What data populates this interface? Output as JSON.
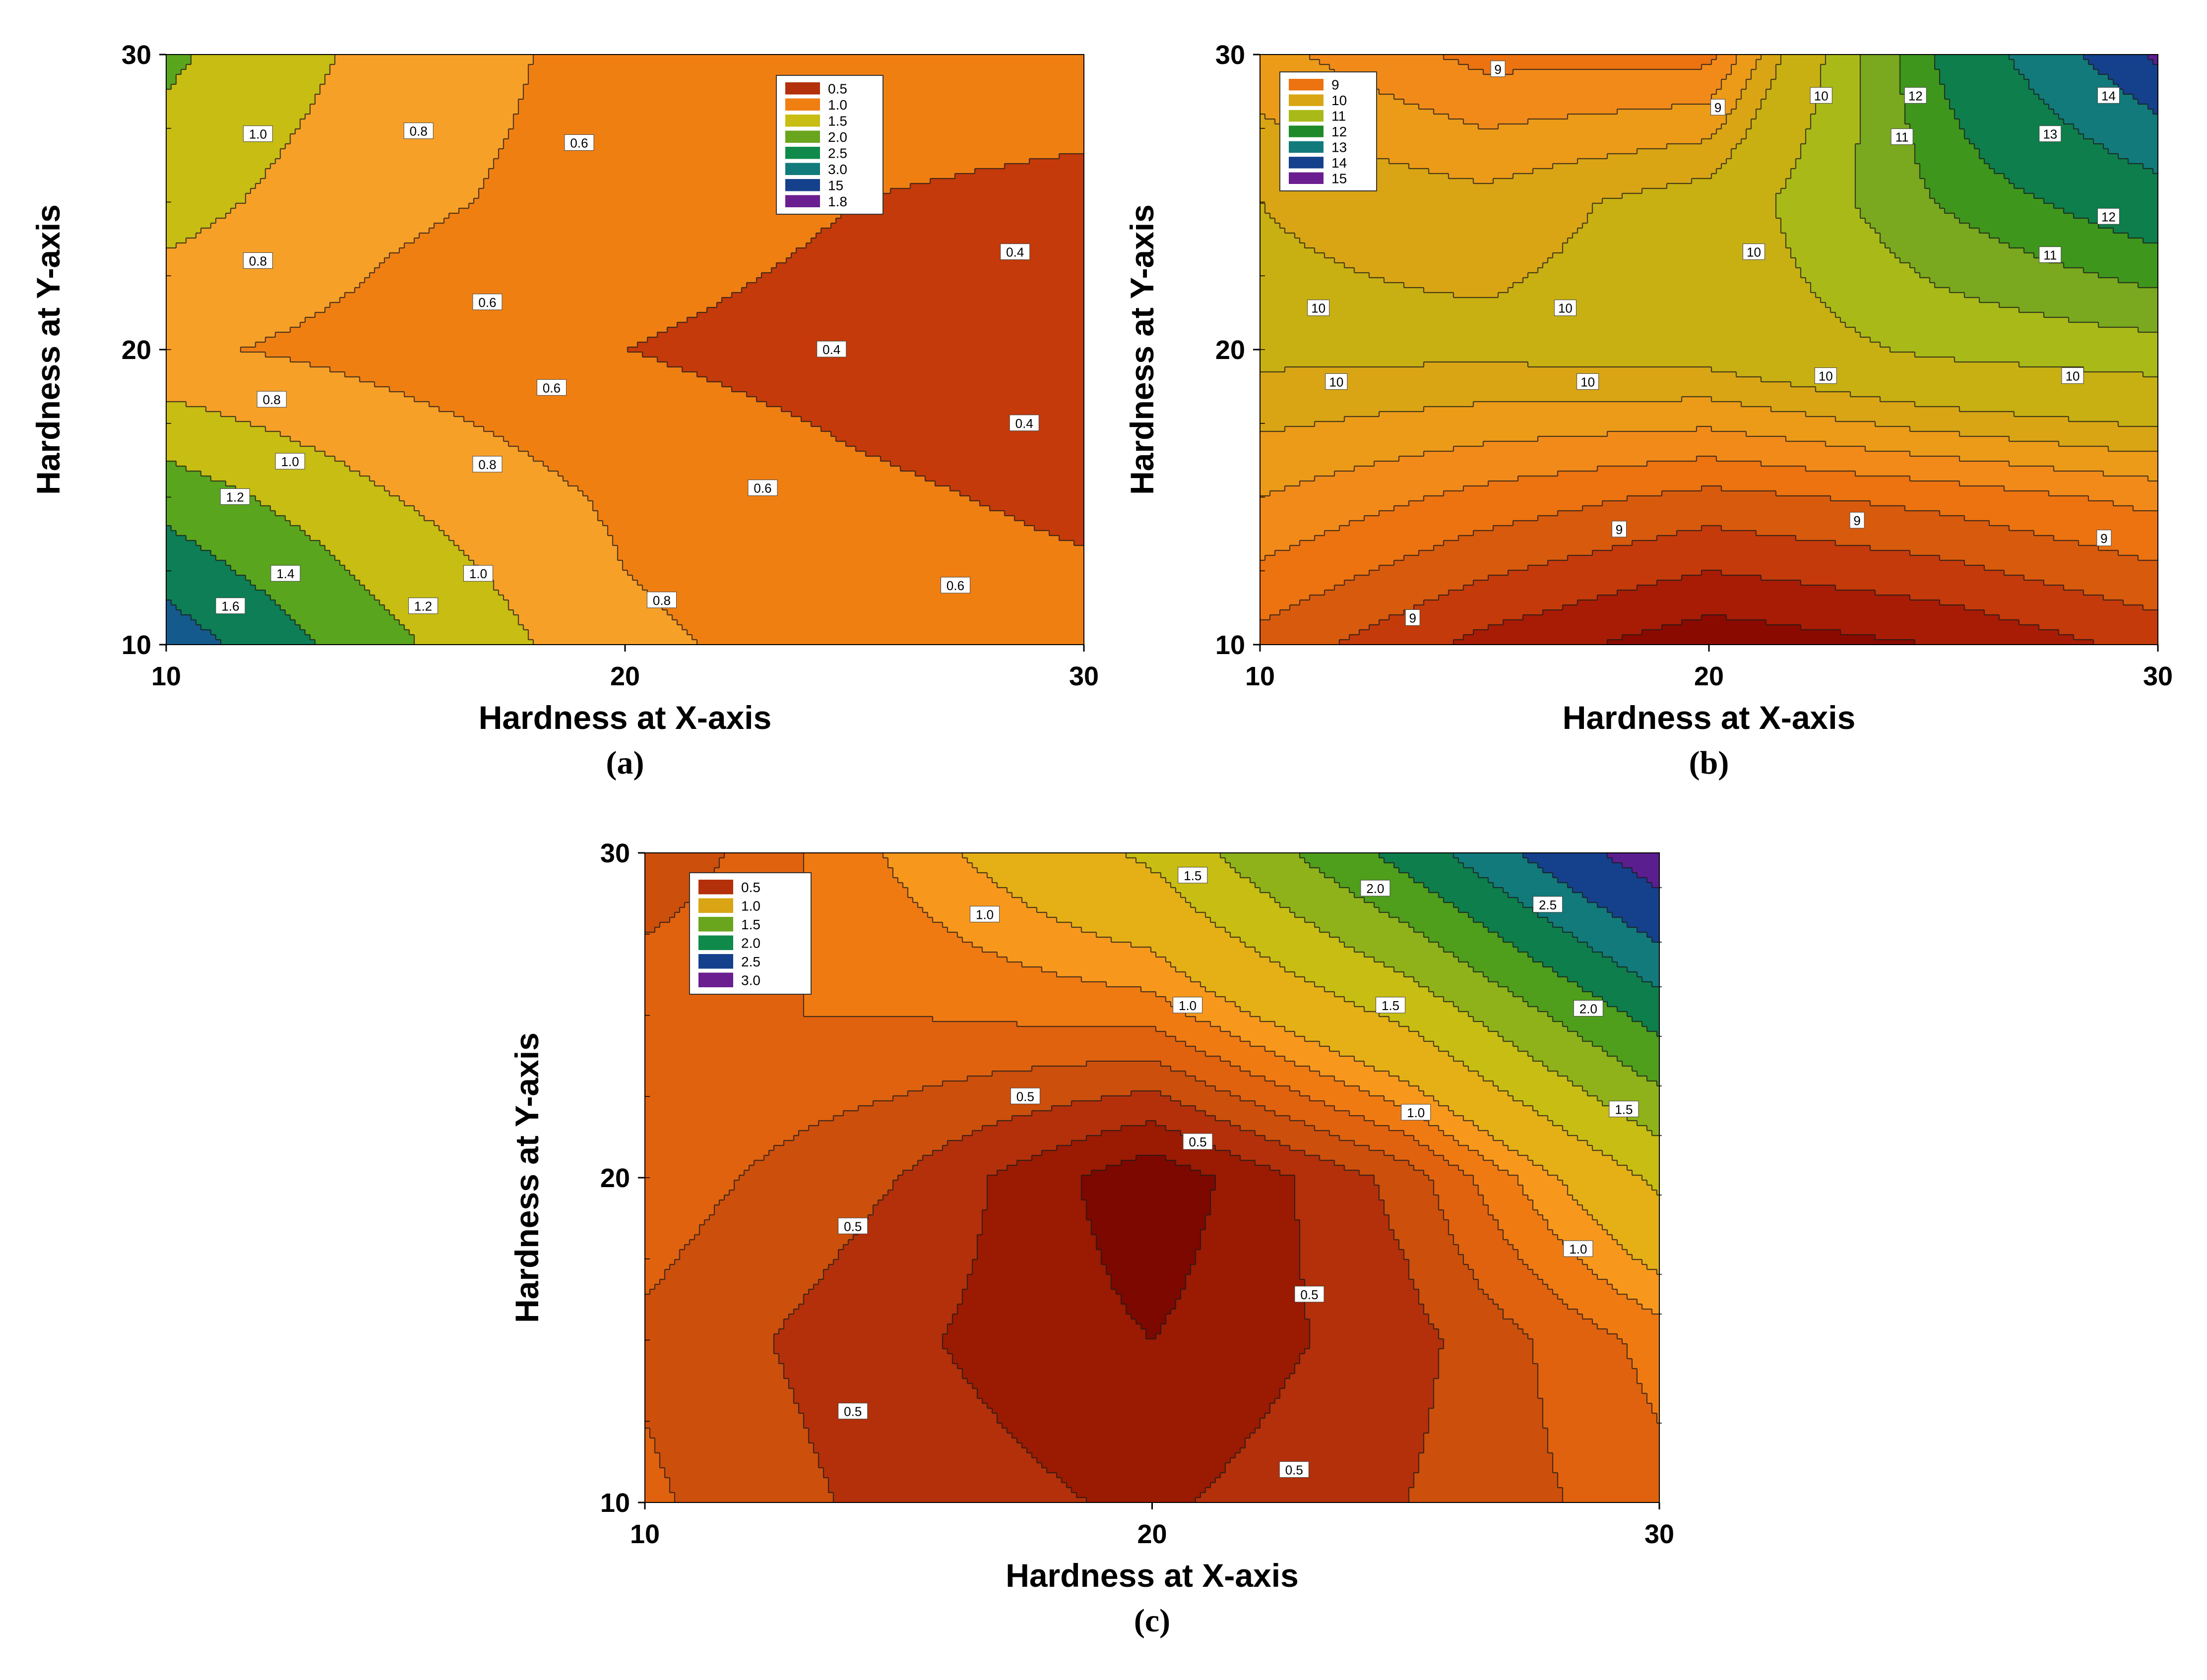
{
  "figure": {
    "panels": [
      {
        "label": "(a)"
      },
      {
        "label": "(b)"
      },
      {
        "label": "(c)"
      }
    ]
  },
  "chart_data": [
    {
      "id": "a",
      "type": "heatmap",
      "subtype": "filled-contour",
      "panel_label": "(a)",
      "xlabel": "Hardness at X-axis",
      "ylabel": "Hardness at Y-axis",
      "xlim": [
        10,
        30
      ],
      "ylim": [
        10,
        30
      ],
      "xticks": [
        10,
        20,
        30
      ],
      "yticks": [
        10,
        20,
        30
      ],
      "x": [
        10,
        15,
        20,
        25,
        30
      ],
      "y": [
        10,
        15,
        20,
        25,
        30
      ],
      "z": [
        [
          1.9,
          1.3,
          0.8,
          0.65,
          0.6
        ],
        [
          1.4,
          1.0,
          0.7,
          0.55,
          0.45
        ],
        [
          0.8,
          0.65,
          0.5,
          0.4,
          0.3
        ],
        [
          1.1,
          0.8,
          0.65,
          0.5,
          0.45
        ],
        [
          1.3,
          0.9,
          0.65,
          0.6,
          0.6
        ]
      ],
      "levels": [
        0.25,
        0.5,
        0.75,
        1.0,
        1.25,
        1.5,
        1.75,
        2.0
      ],
      "colors": [
        "#8b0a00",
        "#c43a0a",
        "#f07f12",
        "#f7a028",
        "#c8bd12",
        "#5aa51e",
        "#0d7e55",
        "#145a8c",
        "#5b1e8f"
      ],
      "legend": {
        "position": "top-right",
        "entries": [
          {
            "label": "0.5",
            "color": "#b3300a"
          },
          {
            "label": "1.0",
            "color": "#f07f12"
          },
          {
            "label": "1.5",
            "color": "#c8bd12"
          },
          {
            "label": "2.0",
            "color": "#6aa51e"
          },
          {
            "label": "2.5",
            "color": "#0f8a4a"
          },
          {
            "label": "3.0",
            "color": "#127a7a"
          },
          {
            "label": "15",
            "color": "#15418c"
          },
          {
            "label": "1.8",
            "color": "#6a1e8f"
          }
        ]
      },
      "annotations": [
        {
          "text": "1.0",
          "x": 12,
          "y": 27.3
        },
        {
          "text": "0.8",
          "x": 15.5,
          "y": 27.4
        },
        {
          "text": "0.6",
          "x": 19,
          "y": 27
        },
        {
          "text": "0.8",
          "x": 12,
          "y": 23
        },
        {
          "text": "0.6",
          "x": 17,
          "y": 21.6
        },
        {
          "text": "0.4",
          "x": 28.5,
          "y": 23.3
        },
        {
          "text": "0.4",
          "x": 24.5,
          "y": 20
        },
        {
          "text": "0.8",
          "x": 12.3,
          "y": 18.3
        },
        {
          "text": "0.6",
          "x": 18.4,
          "y": 18.7
        },
        {
          "text": "0.4",
          "x": 28.7,
          "y": 17.5
        },
        {
          "text": "1.0",
          "x": 12.7,
          "y": 16.2
        },
        {
          "text": "0.8",
          "x": 17,
          "y": 16.1
        },
        {
          "text": "1.2",
          "x": 11.5,
          "y": 15
        },
        {
          "text": "0.6",
          "x": 23,
          "y": 15.3
        },
        {
          "text": "1.4",
          "x": 12.6,
          "y": 12.4
        },
        {
          "text": "1.0",
          "x": 16.8,
          "y": 12.4
        },
        {
          "text": "1.6",
          "x": 11.4,
          "y": 11.3
        },
        {
          "text": "1.2",
          "x": 15.6,
          "y": 11.3
        },
        {
          "text": "0.8",
          "x": 20.8,
          "y": 11.5
        },
        {
          "text": "0.6",
          "x": 27.2,
          "y": 12
        }
      ]
    },
    {
      "id": "b",
      "type": "heatmap",
      "subtype": "filled-contour",
      "panel_label": "(b)",
      "xlabel": "Hardness at X-axis",
      "ylabel": "Hardness at Y-axis",
      "xlim": [
        10,
        30
      ],
      "ylim": [
        10,
        30
      ],
      "xticks": [
        10,
        20,
        30
      ],
      "yticks": [
        10,
        20,
        30
      ],
      "x": [
        10,
        15,
        20,
        25,
        30
      ],
      "y": [
        10,
        15,
        20,
        25,
        30
      ],
      "z": [
        [
          8.6,
          8.0,
          7.6,
          7.8,
          8.2
        ],
        [
          9.3,
          8.9,
          8.6,
          8.8,
          9.1
        ],
        [
          10.0,
          10.0,
          10.1,
          10.6,
          10.8
        ],
        [
          9.9,
          9.7,
          10.1,
          11.5,
          12.5
        ],
        [
          9.4,
          8.9,
          8.9,
          12.0,
          15.0
        ]
      ],
      "levels": [
        7.8,
        8.1,
        8.4,
        8.7,
        9.0,
        9.3,
        9.6,
        9.9,
        10.5,
        11.0,
        11.5,
        12.0,
        13.0,
        14.0,
        14.8
      ],
      "colors": [
        "#8b0a00",
        "#a81c05",
        "#c43a0a",
        "#d85a0d",
        "#ec7310",
        "#f28a1a",
        "#ec9b18",
        "#d9a514",
        "#c8b012",
        "#a9ba18",
        "#7aa81e",
        "#3f961c",
        "#0e7e4c",
        "#127a7a",
        "#15418c",
        "#5b1e8f"
      ],
      "legend": {
        "position": "top-left",
        "entries": [
          {
            "label": "9",
            "color": "#ec7310"
          },
          {
            "label": "10",
            "color": "#d9a514"
          },
          {
            "label": "11",
            "color": "#a9ba18"
          },
          {
            "label": "12",
            "color": "#1e8a2a"
          },
          {
            "label": "13",
            "color": "#127a7a"
          },
          {
            "label": "14",
            "color": "#15418c"
          },
          {
            "label": "15",
            "color": "#6a1e8f"
          }
        ]
      },
      "annotations": [
        {
          "text": "9",
          "x": 15.3,
          "y": 29.5
        },
        {
          "text": "9",
          "x": 20.2,
          "y": 28.2
        },
        {
          "text": "10",
          "x": 22.5,
          "y": 28.6
        },
        {
          "text": "12",
          "x": 24.6,
          "y": 28.6
        },
        {
          "text": "14",
          "x": 28.9,
          "y": 28.6
        },
        {
          "text": "11",
          "x": 24.3,
          "y": 27.2
        },
        {
          "text": "13",
          "x": 27.6,
          "y": 27.3
        },
        {
          "text": "12",
          "x": 28.9,
          "y": 24.5
        },
        {
          "text": "10",
          "x": 21,
          "y": 23.3
        },
        {
          "text": "11",
          "x": 27.6,
          "y": 23.2
        },
        {
          "text": "10",
          "x": 11.3,
          "y": 21.4
        },
        {
          "text": "10",
          "x": 16.8,
          "y": 21.4
        },
        {
          "text": "10",
          "x": 11.7,
          "y": 18.9
        },
        {
          "text": "10",
          "x": 17.3,
          "y": 18.9
        },
        {
          "text": "10",
          "x": 22.6,
          "y": 19.1
        },
        {
          "text": "10",
          "x": 28.1,
          "y": 19.1
        },
        {
          "text": "9",
          "x": 18,
          "y": 13.9
        },
        {
          "text": "9",
          "x": 23.3,
          "y": 14.2
        },
        {
          "text": "9",
          "x": 28.8,
          "y": 13.6
        },
        {
          "text": "9",
          "x": 13.4,
          "y": 10.9
        }
      ]
    },
    {
      "id": "c",
      "type": "heatmap",
      "subtype": "filled-contour",
      "panel_label": "(c)",
      "xlabel": "Hardness at X-axis",
      "ylabel": "Hardness at Y-axis",
      "xlim": [
        10,
        30
      ],
      "ylim": [
        10,
        30
      ],
      "xticks": [
        10,
        20,
        30
      ],
      "yticks": [
        10,
        20,
        30
      ],
      "x": [
        10,
        15,
        20,
        25,
        30
      ],
      "y": [
        10,
        15,
        20,
        25,
        30
      ],
      "z": [
        [
          0.65,
          0.45,
          0.35,
          0.5,
          0.7
        ],
        [
          0.6,
          0.4,
          0.25,
          0.45,
          0.8
        ],
        [
          0.7,
          0.5,
          0.15,
          0.55,
          1.3
        ],
        [
          0.75,
          0.75,
          0.8,
          1.3,
          2.1
        ],
        [
          0.5,
          0.9,
          1.3,
          2.1,
          3.0
        ]
      ],
      "levels": [
        0.25,
        0.375,
        0.5,
        0.625,
        0.75,
        0.875,
        1.0,
        1.25,
        1.5,
        1.75,
        2.0,
        2.25,
        2.5,
        2.8
      ],
      "colors": [
        "#7d0800",
        "#9a1a02",
        "#b3300a",
        "#cc4f0c",
        "#e0620e",
        "#f07a12",
        "#f7981c",
        "#e5b016",
        "#c8bd12",
        "#8fb21a",
        "#4f9e1c",
        "#0e7e4c",
        "#127a7a",
        "#15418c",
        "#5b1e8f"
      ],
      "legend": {
        "position": "top-left",
        "entries": [
          {
            "label": "0.5",
            "color": "#b3300a"
          },
          {
            "label": "1.0",
            "color": "#d9a514"
          },
          {
            "label": "1.5",
            "color": "#6aa51e"
          },
          {
            "label": "2.0",
            "color": "#0f8a4a"
          },
          {
            "label": "2.5",
            "color": "#15418c"
          },
          {
            "label": "3.0",
            "color": "#6a1e8f"
          }
        ]
      },
      "annotations": [
        {
          "text": "1.5",
          "x": 20.8,
          "y": 29.3
        },
        {
          "text": "2.0",
          "x": 24.4,
          "y": 28.9
        },
        {
          "text": "2.5",
          "x": 27.8,
          "y": 28.4
        },
        {
          "text": "1.0",
          "x": 16.7,
          "y": 28.1
        },
        {
          "text": "1.0",
          "x": 20.7,
          "y": 25.3
        },
        {
          "text": "1.5",
          "x": 24.7,
          "y": 25.3
        },
        {
          "text": "2.0",
          "x": 28.6,
          "y": 25.2
        },
        {
          "text": "0.5",
          "x": 17.5,
          "y": 22.5
        },
        {
          "text": "1.0",
          "x": 25.2,
          "y": 22
        },
        {
          "text": "1.5",
          "x": 29.3,
          "y": 22.1
        },
        {
          "text": "0.5",
          "x": 20.9,
          "y": 21.1
        },
        {
          "text": "0.5",
          "x": 14.1,
          "y": 18.5
        },
        {
          "text": "1.0",
          "x": 28.4,
          "y": 17.8
        },
        {
          "text": "0.5",
          "x": 23.1,
          "y": 16.4
        },
        {
          "text": "0.5",
          "x": 14.1,
          "y": 12.8
        },
        {
          "text": "0.5",
          "x": 22.8,
          "y": 11
        }
      ]
    }
  ]
}
